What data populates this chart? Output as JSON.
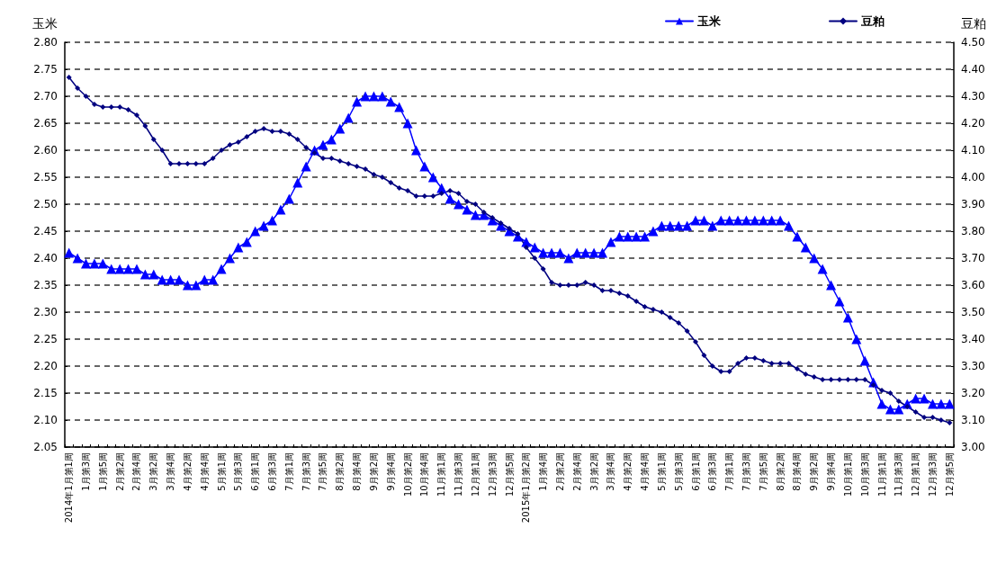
{
  "chart_data": {
    "type": "line",
    "ylabel": "玉米",
    "y2label": "豆粕",
    "categories": [
      "2014年1月第1周",
      null,
      "1月第3周",
      null,
      "1月第5周",
      null,
      "2月第2周",
      null,
      "2月第4周",
      null,
      "3月第2周",
      null,
      "3月第4周",
      null,
      "4月第2周",
      null,
      "4月第4周",
      null,
      "5月第1周",
      null,
      "5月第3周",
      null,
      "6月第1周",
      null,
      "6月第3周",
      null,
      "7月第1周",
      null,
      "7月第3周",
      null,
      "7月第5周",
      null,
      "8月第2周",
      null,
      "8月第4周",
      null,
      "9月第2周",
      null,
      "9月第4周",
      null,
      "10月第2周",
      null,
      "10月第4周",
      null,
      "11月第1周",
      null,
      "11月第3周",
      null,
      "12月第1周",
      null,
      "12月第3周",
      null,
      "12月第5周",
      null,
      "2015年1月第2周",
      null,
      "1月第4周",
      null,
      "2月第2周",
      null,
      "2月第4周",
      null,
      "3月第2周",
      null,
      "3月第4周",
      null,
      "4月第2周",
      null,
      "4月第4周",
      null,
      "5月第1周",
      null,
      "5月第3周",
      null,
      "6月第1周",
      null,
      "6月第3周",
      null,
      "7月第1周",
      null,
      "7月第3周",
      null,
      "7月第5周",
      null,
      "8月第2周",
      null,
      "8月第4周",
      null,
      "9月第2周",
      null,
      "9月第4周",
      null,
      "10月第1周",
      null,
      "10月第3周",
      null,
      "11月第1周",
      null,
      "11月第3周",
      null,
      "12月第1周",
      null,
      "12月第3周",
      null,
      "12月第5周"
    ],
    "series": [
      {
        "name": "玉米",
        "color": "#0000ff",
        "marker": "triangle",
        "values": [
          2.41,
          2.4,
          2.39,
          2.39,
          2.39,
          2.38,
          2.38,
          2.38,
          2.38,
          2.37,
          2.37,
          2.36,
          2.36,
          2.36,
          2.35,
          2.35,
          2.36,
          2.36,
          2.38,
          2.4,
          2.42,
          2.43,
          2.45,
          2.46,
          2.47,
          2.49,
          2.51,
          2.54,
          2.57,
          2.6,
          2.61,
          2.62,
          2.64,
          2.66,
          2.69,
          2.7,
          2.7,
          2.7,
          2.69,
          2.68,
          2.65,
          2.6,
          2.57,
          2.55,
          2.53,
          2.51,
          2.5,
          2.49,
          2.48,
          2.48,
          2.47,
          2.46,
          2.45,
          2.44,
          2.43,
          2.42,
          2.41,
          2.41,
          2.41,
          2.4,
          2.41,
          2.41,
          2.41,
          2.41,
          2.43,
          2.44,
          2.44,
          2.44,
          2.44,
          2.45,
          2.46,
          2.46,
          2.46,
          2.46,
          2.47,
          2.47,
          2.46,
          2.47,
          2.47,
          2.47,
          2.47,
          2.47,
          2.47,
          2.47,
          2.47,
          2.46,
          2.44,
          2.42,
          2.4,
          2.38,
          2.35,
          2.32,
          2.29,
          2.25,
          2.21,
          2.17,
          2.13,
          2.12,
          2.12,
          2.13,
          2.14,
          2.14,
          2.13,
          2.13,
          2.13
        ]
      },
      {
        "name": "豆粕",
        "color": "#000080",
        "marker": "diamond",
        "axis": "y2",
        "values": [
          4.37,
          4.33,
          4.3,
          4.27,
          4.26,
          4.26,
          4.26,
          4.25,
          4.23,
          4.19,
          4.14,
          4.1,
          4.05,
          4.05,
          4.05,
          4.05,
          4.05,
          4.07,
          4.1,
          4.12,
          4.13,
          4.15,
          4.17,
          4.18,
          4.17,
          4.17,
          4.16,
          4.14,
          4.11,
          4.09,
          4.07,
          4.07,
          4.06,
          4.05,
          4.04,
          4.03,
          4.01,
          4.0,
          3.98,
          3.96,
          3.95,
          3.93,
          3.93,
          3.93,
          3.94,
          3.95,
          3.94,
          3.91,
          3.9,
          3.87,
          3.85,
          3.83,
          3.81,
          3.79,
          3.74,
          3.7,
          3.66,
          3.61,
          3.6,
          3.6,
          3.6,
          3.61,
          3.6,
          3.58,
          3.58,
          3.57,
          3.56,
          3.54,
          3.52,
          3.51,
          3.5,
          3.48,
          3.46,
          3.43,
          3.39,
          3.34,
          3.3,
          3.28,
          3.28,
          3.31,
          3.33,
          3.33,
          3.32,
          3.31,
          3.31,
          3.31,
          3.29,
          3.27,
          3.26,
          3.25,
          3.25,
          3.25,
          3.25,
          3.25,
          3.25,
          3.23,
          3.21,
          3.2,
          3.17,
          3.15,
          3.13,
          3.11,
          3.11,
          3.1,
          3.09
        ]
      }
    ],
    "ylim": [
      2.05,
      2.8
    ],
    "yticks": [
      {
        "value": 2.05,
        "label": "2.05"
      },
      {
        "value": 2.1,
        "label": "2.10"
      },
      {
        "value": 2.15,
        "label": "2.15"
      },
      {
        "value": 2.2,
        "label": "2.20"
      },
      {
        "value": 2.25,
        "label": "2.25"
      },
      {
        "value": 2.3,
        "label": "2.30"
      },
      {
        "value": 2.35,
        "label": "2.35"
      },
      {
        "value": 2.4,
        "label": "2.40"
      },
      {
        "value": 2.45,
        "label": "2.45"
      },
      {
        "value": 2.5,
        "label": "2.50"
      },
      {
        "value": 2.55,
        "label": "2.55"
      },
      {
        "value": 2.6,
        "label": "2.60"
      },
      {
        "value": 2.65,
        "label": "2.65"
      },
      {
        "value": 2.7,
        "label": "2.70"
      },
      {
        "value": 2.75,
        "label": "2.75"
      },
      {
        "value": 2.8,
        "label": "2.80"
      }
    ],
    "y2lim": [
      3.0,
      4.5
    ],
    "y2ticks": [
      {
        "value": 3.0,
        "label": "3.00"
      },
      {
        "value": 3.1,
        "label": "3.10"
      },
      {
        "value": 3.2,
        "label": "3.20"
      },
      {
        "value": 3.3,
        "label": "3.30"
      },
      {
        "value": 3.4,
        "label": "3.40"
      },
      {
        "value": 3.5,
        "label": "3.50"
      },
      {
        "value": 3.6,
        "label": "3.60"
      },
      {
        "value": 3.7,
        "label": "3.70"
      },
      {
        "value": 3.8,
        "label": "3.80"
      },
      {
        "value": 3.9,
        "label": "3.90"
      },
      {
        "value": 4.0,
        "label": "4.00"
      },
      {
        "value": 4.1,
        "label": "4.10"
      },
      {
        "value": 4.2,
        "label": "4.20"
      },
      {
        "value": 4.3,
        "label": "4.30"
      },
      {
        "value": 4.4,
        "label": "4.40"
      },
      {
        "value": 4.5,
        "label": "4.50"
      }
    ],
    "grid": "y",
    "legend": "top right"
  }
}
